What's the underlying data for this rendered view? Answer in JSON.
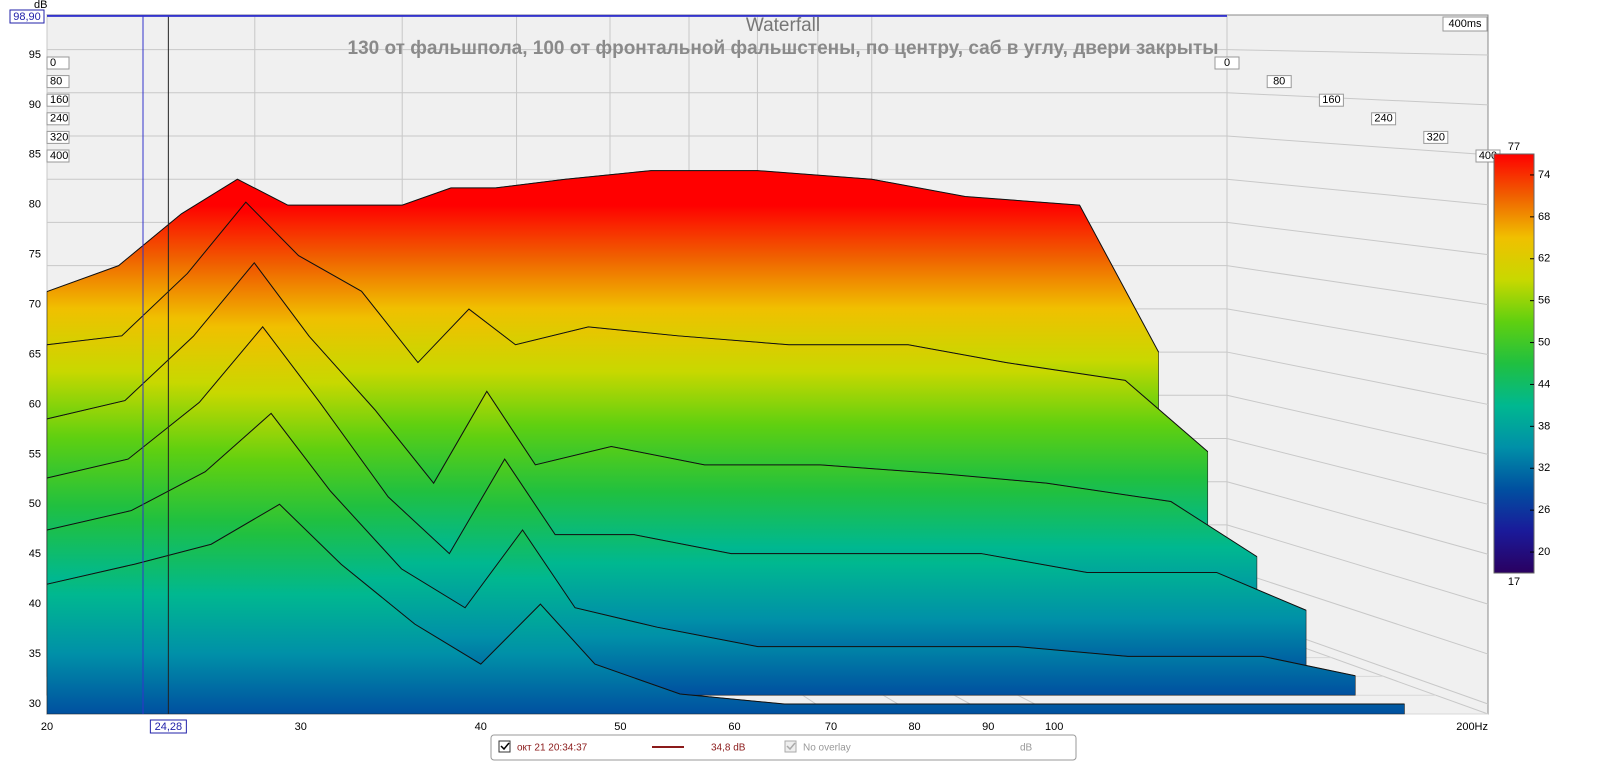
{
  "chart_data": {
    "type": "waterfall",
    "title": "Waterfall",
    "subtitle": "130 от фальшпола, 100 от фронтальной фальшстены, по центру, саб в углу, двери закрыты",
    "y_label": "dB",
    "x_scale": "log",
    "xlim": [
      20,
      200
    ],
    "xticks": [
      20,
      30,
      40,
      50,
      60,
      70,
      80,
      90,
      100,
      {
        "value": 200,
        "label": "200Hz"
      }
    ],
    "ylim": [
      29,
      99
    ],
    "yticks": [
      30,
      35,
      40,
      45,
      50,
      55,
      60,
      65,
      70,
      75,
      80,
      85,
      90,
      95
    ],
    "zlim": [
      0,
      400
    ],
    "zticks": [
      0,
      80,
      160,
      240,
      320,
      400
    ],
    "time_span_label": "400ms",
    "colorlim": [
      17,
      77
    ],
    "colorticks": [
      20,
      26,
      32,
      38,
      44,
      50,
      56,
      62,
      68,
      74
    ],
    "colormap": [
      "#2a0060",
      "#1a1a9a",
      "#0050a0",
      "#0090a8",
      "#00b890",
      "#20c040",
      "#60d010",
      "#c8d800",
      "#f0c000",
      "#f06000",
      "#ff0000"
    ],
    "grid": true,
    "cursor": {
      "x": 24.28,
      "x_label": "24,28",
      "y": 98.9,
      "y_label": "98,90"
    },
    "x": [
      20,
      23,
      26,
      29,
      32,
      36,
      40,
      44,
      48,
      55,
      65,
      80,
      100,
      120,
      150,
      175
    ],
    "slices": [
      {
        "time": 0,
        "values": [
          67,
          70,
          76,
          80,
          77,
          77,
          77,
          79,
          79,
          80,
          81,
          81,
          80,
          78,
          77,
          60
        ]
      },
      {
        "time": 80,
        "values": [
          62,
          63,
          70,
          78,
          72,
          68,
          60,
          66,
          62,
          64,
          63,
          62,
          62,
          60,
          58,
          50
        ]
      },
      {
        "time": 160,
        "values": [
          55,
          57,
          64,
          72,
          64,
          56,
          48,
          58,
          50,
          52,
          50,
          50,
          49,
          48,
          46,
          40
        ]
      },
      {
        "time": 240,
        "values": [
          50,
          52,
          58,
          66,
          58,
          48,
          42,
          52,
          44,
          44,
          42,
          42,
          42,
          40,
          40,
          36
        ]
      },
      {
        "time": 320,
        "values": [
          46,
          48,
          52,
          58,
          50,
          42,
          38,
          46,
          38,
          36,
          34,
          34,
          34,
          33,
          33,
          31
        ]
      },
      {
        "time": 400,
        "values": [
          42,
          44,
          46,
          50,
          44,
          38,
          34,
          40,
          34,
          31,
          30,
          30,
          30,
          30,
          30,
          30
        ]
      }
    ],
    "legend": {
      "date": "окт 21 20:34:37",
      "color": "#8b1a1a",
      "level": "34,8 dB",
      "overlay": "No overlay",
      "unit": "dB"
    }
  }
}
